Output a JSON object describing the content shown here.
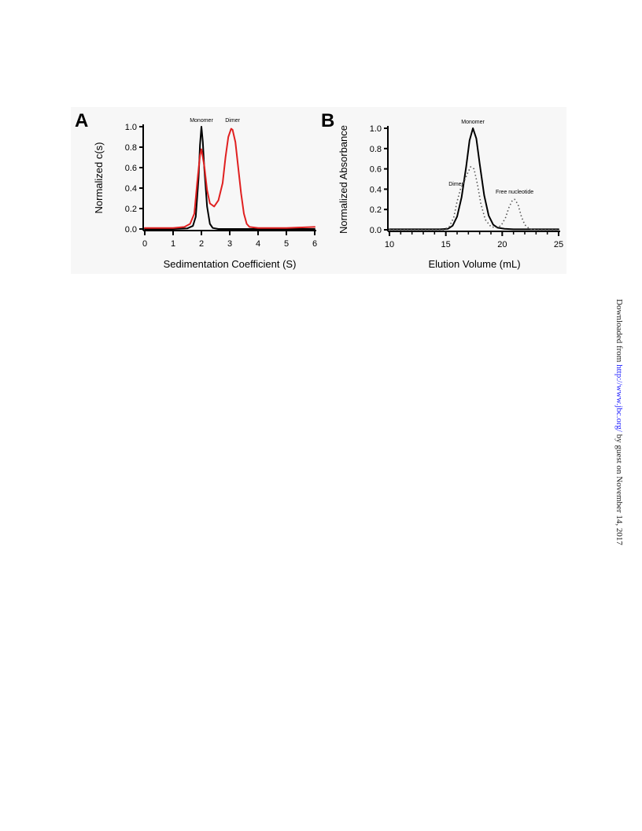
{
  "figure": {
    "panel_a_letter": "A",
    "panel_b_letter": "B"
  },
  "chart_data": [
    {
      "type": "line",
      "panel": "A",
      "xlabel": "Sedimentation Coefficient (S)",
      "ylabel": "Normalized c(s)",
      "xlim": [
        0,
        6
      ],
      "ylim": [
        0,
        1.0
      ],
      "x_ticks": [
        "0",
        "1",
        "2",
        "3",
        "4",
        "5",
        "6"
      ],
      "y_ticks": [
        "0.0",
        "0.2",
        "0.4",
        "0.6",
        "0.8",
        "1.0"
      ],
      "annotations": [
        {
          "text": "Monomer",
          "x": 2.0,
          "y": 1.03
        },
        {
          "text": "Dimer",
          "x": 3.1,
          "y": 1.03
        }
      ],
      "series": [
        {
          "color": "#000000",
          "style": "solid",
          "x": [
            0,
            1.0,
            1.5,
            1.7,
            1.8,
            1.9,
            1.95,
            2.0,
            2.05,
            2.1,
            2.2,
            2.3,
            2.4,
            2.6,
            3.0,
            6.0
          ],
          "y": [
            0,
            0,
            0.005,
            0.03,
            0.12,
            0.5,
            0.82,
            1.0,
            0.85,
            0.6,
            0.22,
            0.05,
            0.01,
            0,
            0,
            0
          ]
        },
        {
          "color": "#e02020",
          "style": "solid",
          "x": [
            0,
            1.0,
            1.4,
            1.6,
            1.75,
            1.85,
            1.95,
            2.0,
            2.1,
            2.2,
            2.3,
            2.45,
            2.6,
            2.75,
            2.85,
            2.95,
            3.05,
            3.1,
            3.2,
            3.3,
            3.4,
            3.5,
            3.6,
            3.7,
            4.0,
            5.0,
            6.0
          ],
          "y": [
            0.01,
            0.01,
            0.02,
            0.05,
            0.15,
            0.45,
            0.72,
            0.78,
            0.62,
            0.38,
            0.25,
            0.22,
            0.28,
            0.45,
            0.7,
            0.9,
            0.98,
            0.97,
            0.85,
            0.6,
            0.35,
            0.15,
            0.05,
            0.02,
            0.01,
            0.01,
            0.02
          ]
        }
      ]
    },
    {
      "type": "line",
      "panel": "B",
      "xlabel": "Elution Volume (mL)",
      "ylabel": "Normalized Absorbance",
      "xlim": [
        10,
        25
      ],
      "ylim": [
        0,
        1.0
      ],
      "x_ticks": [
        "10",
        "15",
        "20",
        "25"
      ],
      "y_ticks": [
        "0.0",
        "0.2",
        "0.4",
        "0.6",
        "0.8",
        "1.0"
      ],
      "annotations": [
        {
          "text": "Monomer",
          "x": 17.4,
          "y": 1.03
        },
        {
          "text": "Dimer",
          "x": 15.9,
          "y": 0.42
        },
        {
          "text": "Free nucleotide",
          "x": 21.1,
          "y": 0.34
        }
      ],
      "series": [
        {
          "color": "#000000",
          "style": "solid",
          "x": [
            10,
            14.5,
            15.2,
            15.6,
            16.0,
            16.4,
            16.8,
            17.1,
            17.4,
            17.7,
            18.0,
            18.4,
            18.8,
            19.2,
            19.6,
            20.2,
            21.0,
            25.0
          ],
          "y": [
            0.005,
            0.005,
            0.01,
            0.04,
            0.13,
            0.32,
            0.62,
            0.88,
            1.0,
            0.9,
            0.65,
            0.34,
            0.14,
            0.05,
            0.02,
            0.01,
            0.005,
            0.005
          ]
        },
        {
          "color": "#555555",
          "style": "dotted",
          "x": [
            10,
            14.8,
            15.3,
            15.7,
            16.0,
            16.3,
            16.6,
            16.9,
            17.2,
            17.5,
            17.8,
            18.1,
            18.5,
            19.0,
            19.5,
            19.9,
            20.3,
            20.6,
            20.9,
            21.1,
            21.4,
            21.7,
            22.0,
            22.4,
            23.0,
            25.0
          ],
          "y": [
            0,
            0,
            0.03,
            0.12,
            0.28,
            0.4,
            0.47,
            0.55,
            0.62,
            0.6,
            0.45,
            0.26,
            0.1,
            0.03,
            0.02,
            0.04,
            0.12,
            0.22,
            0.29,
            0.3,
            0.25,
            0.13,
            0.05,
            0.01,
            0,
            0
          ]
        }
      ]
    }
  ],
  "side_note": {
    "prefix": "Downloaded from ",
    "link": "http://www.jbc.org/",
    "suffix": " by guest on November 14, 2017"
  }
}
